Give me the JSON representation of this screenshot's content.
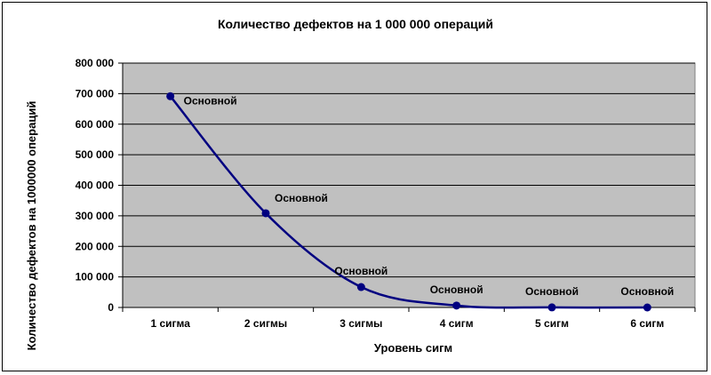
{
  "chart_data": {
    "type": "line",
    "title": "Количество дефектов на 1 000 000 операций",
    "xlabel": "Уровень сигм",
    "ylabel": "Количество дефектов на 1000000 операций",
    "categories": [
      "1 сигма",
      "2 сигмы",
      "3 сигмы",
      "4 сигм",
      "5 сигм",
      "6 сигм"
    ],
    "series": [
      {
        "values": [
          691462,
          308538,
          66807,
          6210,
          233,
          3.4
        ],
        "color": "#000080",
        "point_labels": [
          "Основной",
          "Основной",
          "Основной",
          "Основной",
          "Основной",
          "Основной"
        ]
      }
    ],
    "ylim": [
      0,
      800000
    ],
    "yticks": [
      0,
      100000,
      200000,
      300000,
      400000,
      500000,
      600000,
      700000,
      800000
    ],
    "ytick_labels": [
      "0",
      "100 000",
      "200 000",
      "300 000",
      "400 000",
      "500 000",
      "600 000",
      "700 000",
      "800 000"
    ],
    "grid": true,
    "plot_background": "#c0c0c0",
    "smooth": true,
    "legend": "none"
  }
}
